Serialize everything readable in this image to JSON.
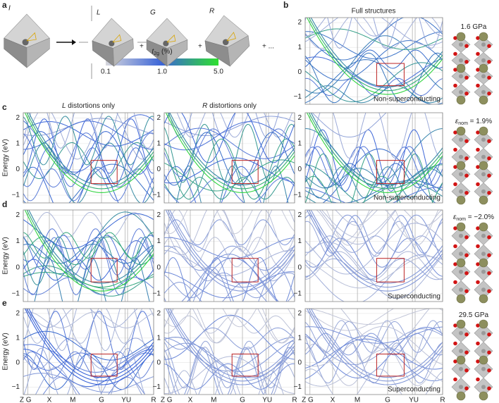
{
  "panel_a": {
    "letter": "a",
    "states": [
      "I",
      "L",
      "G",
      "R"
    ],
    "operators": [
      "+",
      "+",
      "+ ..."
    ],
    "colorbar": {
      "symbol": "t",
      "subscript": "2g",
      "unit": "(%)",
      "ticks": [
        "0.1",
        "1.0",
        "5.0"
      ]
    }
  },
  "panel_b": {
    "letter": "b",
    "title": "Full structures",
    "note": "Non-superconducting",
    "condition": {
      "text": "1.6 GPa"
    }
  },
  "column_titles": [
    {
      "italic": "L",
      "rest": " distortions only"
    },
    {
      "italic": "R",
      "rest": " distortions only"
    }
  ],
  "rows": [
    {
      "letter": "c",
      "note": "Non-superconducting",
      "condition": {
        "symbol": "ε",
        "subscript": "nom",
        "value": " = 1.9%"
      }
    },
    {
      "letter": "d",
      "note": "Superconducting",
      "condition": {
        "symbol": "ε",
        "subscript": "nom",
        "value": " = −2.0%"
      }
    },
    {
      "letter": "e",
      "note": "Superconducting",
      "condition": {
        "text": "29.5 GPa"
      }
    }
  ],
  "axis": {
    "y_label": "Energy (eV)",
    "y_ticks": [
      "2",
      "1",
      "0",
      "−1"
    ],
    "k_points": [
      "Z G",
      "X",
      "M",
      "G",
      "YU",
      "R"
    ]
  }
}
